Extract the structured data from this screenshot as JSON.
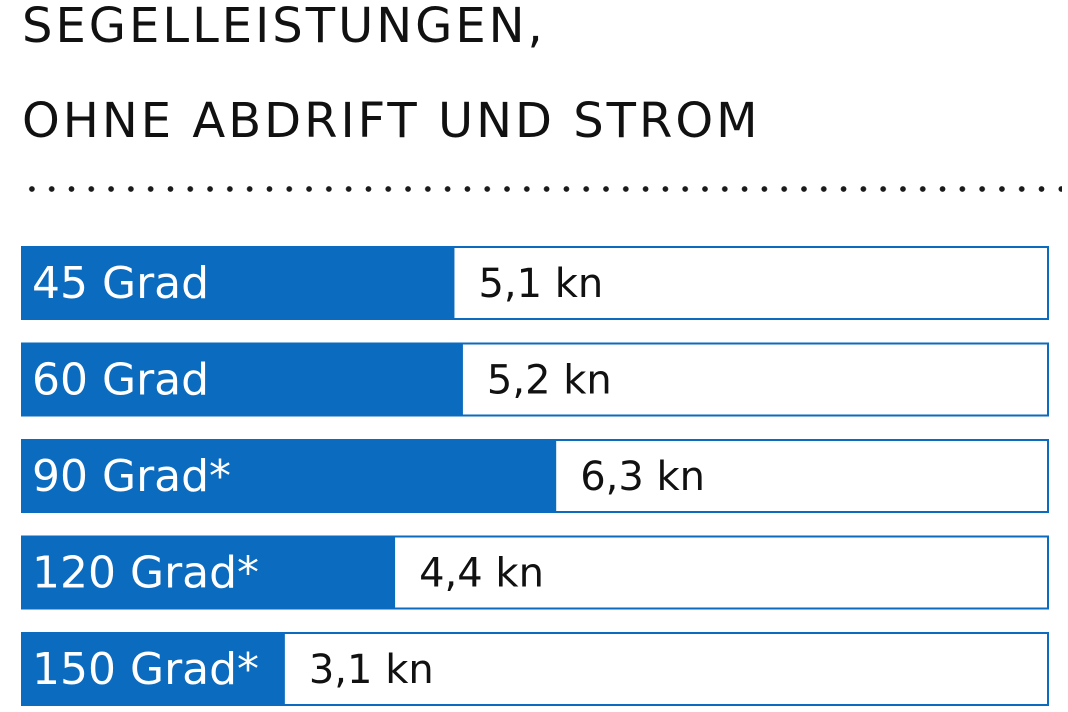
{
  "chart_data": {
    "type": "bar",
    "orientation": "horizontal",
    "title_lines": [
      "SEGELLEISTUNGEN,",
      "OHNE ABDRIFT UND STROM"
    ],
    "categories": [
      "45 Grad",
      "60 Grad",
      "90 Grad*",
      "120 Grad*",
      "150 Grad*"
    ],
    "values": [
      5.1,
      5.2,
      6.3,
      4.4,
      3.1
    ],
    "value_labels": [
      "5,1 kn",
      "5,2 kn",
      "6,3 kn",
      "4,4 kn",
      "3,1 kn"
    ],
    "unit": "kn",
    "xlim": [
      0,
      12.1
    ],
    "grid": false,
    "legend": "none",
    "bar_color": "#0b6bbf",
    "track_color": "#ffffff"
  }
}
